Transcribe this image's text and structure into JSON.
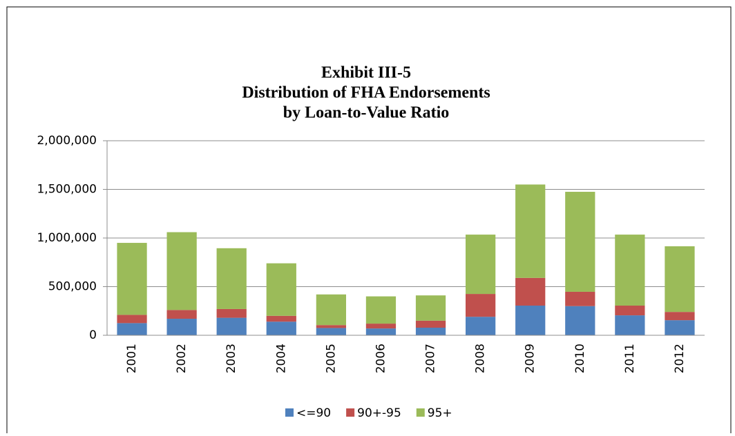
{
  "chart_data": {
    "type": "stacked_bar",
    "title": [
      "Exhibit III-5",
      "Distribution of FHA Endorsements",
      "by Loan-to-Value Ratio"
    ],
    "categories": [
      "2001",
      "2002",
      "2003",
      "2004",
      "2005",
      "2006",
      "2007",
      "2008",
      "2009",
      "2010",
      "2011",
      "2012"
    ],
    "series": [
      {
        "name": "<=90",
        "color": "#4f81bd",
        "values": [
          125000,
          170000,
          180000,
          140000,
          75000,
          70000,
          78000,
          190000,
          305000,
          300000,
          205000,
          155000
        ]
      },
      {
        "name": "90+-95",
        "color": "#c0504d",
        "values": [
          85000,
          90000,
          90000,
          60000,
          30000,
          50000,
          72000,
          235000,
          285000,
          147000,
          100000,
          85000
        ]
      },
      {
        "name": "95+",
        "color": "#9bbb59",
        "values": [
          740000,
          800000,
          625000,
          540000,
          315000,
          280000,
          260000,
          610000,
          960000,
          1028000,
          730000,
          675000
        ]
      }
    ],
    "ylim": [
      0,
      2000000
    ],
    "yticks": [
      0,
      {
        "value": 500000,
        "label": "500,000"
      },
      {
        "value": 1000000,
        "label": "1,000,000"
      },
      {
        "value": 1500000,
        "label": "1,500,000"
      },
      {
        "value": 2000000,
        "label": "2,000,000"
      }
    ],
    "grid": true,
    "legend": "bottom"
  }
}
